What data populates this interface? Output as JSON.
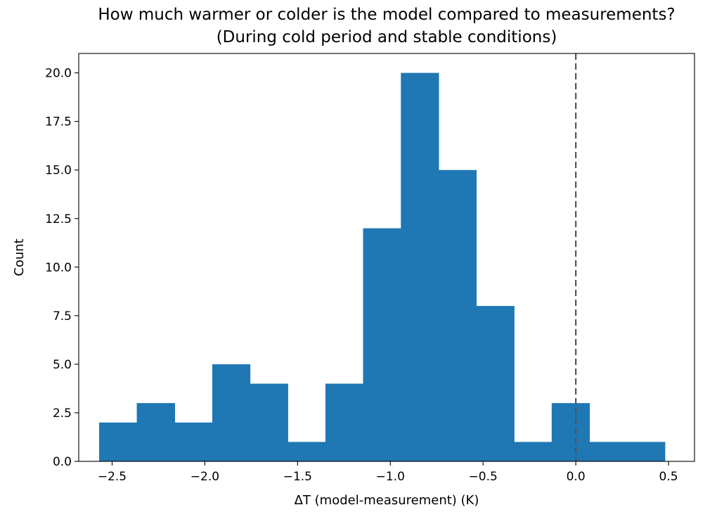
{
  "chart_data": {
    "type": "bar",
    "title_lines": [
      "How much warmer or colder is the model compared to measurements?",
      "(During cold period and stable conditions)"
    ],
    "xlabel": "ΔT (model-measurement) (K)",
    "ylabel": "Count",
    "xlim": [
      -2.68,
      0.64
    ],
    "ylim": [
      0,
      21
    ],
    "x_ticks": [
      -2.5,
      -2.0,
      -1.5,
      -1.0,
      -0.5,
      0.0,
      0.5
    ],
    "x_tick_labels": [
      "−2.5",
      "−2.0",
      "−1.5",
      "−1.0",
      "−0.5",
      "0.0",
      "0.5"
    ],
    "y_ticks": [
      0,
      2.5,
      5,
      7.5,
      10,
      12.5,
      15,
      17.5,
      20
    ],
    "y_tick_labels": [
      "0.0",
      "2.5",
      "5.0",
      "7.5",
      "10.0",
      "12.5",
      "15.0",
      "17.5",
      "20.0"
    ],
    "bin_edges": [
      -2.57,
      -2.367,
      -2.163,
      -1.96,
      -1.757,
      -1.553,
      -1.35,
      -1.147,
      -0.943,
      -0.74,
      -0.537,
      -0.333,
      -0.13,
      0.073,
      0.277,
      0.48
    ],
    "values": [
      2,
      3,
      2,
      5,
      4,
      1,
      4,
      12,
      20,
      15,
      8,
      1,
      3,
      1,
      1
    ],
    "reference_line_x": 0.0,
    "bar_color": "#1f77b4",
    "reference_line_color": "#555555",
    "grid": false
  }
}
